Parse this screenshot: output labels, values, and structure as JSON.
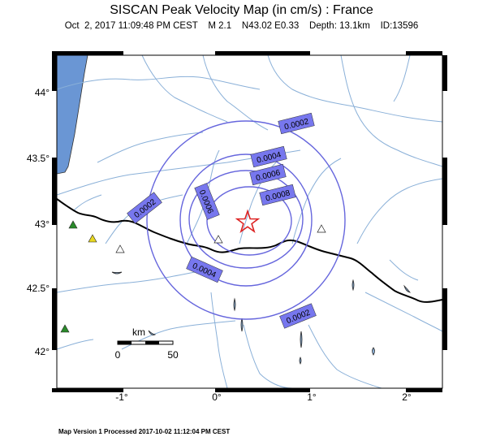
{
  "map": {
    "title": "SISCAN Peak Velocity Map (in cm/s) : France",
    "subtitle": "Oct  2, 2017 11:09:48 PM CEST    M 2.1    N43.02 E0.33    Depth: 13.1km    ID:13596",
    "footer": "Map Version 1 Processed 2017-10-02 11:12:04 PM CEST",
    "longitude_labels": [
      "-1°",
      "0°",
      "1°",
      "2°"
    ],
    "latitude_labels": [
      "44°",
      "43.5°",
      "43°",
      "42.5°",
      "42°"
    ],
    "scale_bar": {
      "unit": "km",
      "start": "0",
      "end": "50"
    },
    "contour_labels": [
      "0.0002",
      "0.0004",
      "0.0006",
      "0.0008",
      "0.0002",
      "0.0006",
      "0.0004",
      "0.0002"
    ],
    "epicenter_icon": "red-star-icon",
    "station_icons": [
      "green-triangle-icon",
      "yellow-triangle-icon",
      "white-triangle-icon"
    ],
    "colors": {
      "contour": "#6666dd",
      "contour_label_bg": "#7777ee",
      "sea": "#6a96d4",
      "river": "#8ab0d8",
      "border": "#000000",
      "epicenter": "#dd2222",
      "station_green": "#2a8a2a",
      "station_yellow": "#e8d820"
    }
  }
}
